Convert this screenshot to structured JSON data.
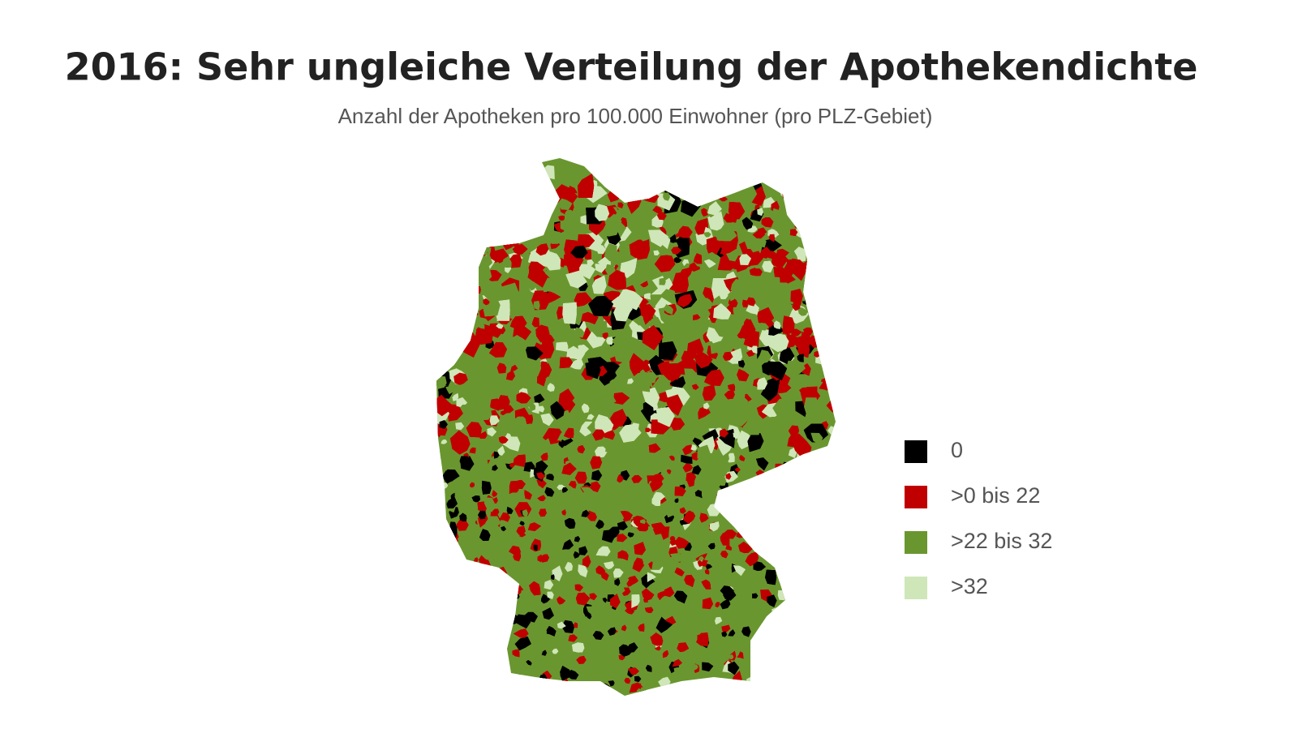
{
  "title": "2016: Sehr ungleiche Verteilung der Apothekendichte",
  "subtitle": "Anzahl der Apotheken pro 100.000 Einwohner (pro PLZ-Gebiet)",
  "legend": {
    "items": [
      {
        "label": "0",
        "color": "#000000"
      },
      {
        "label": ">0 bis 22",
        "color": "#c00000"
      },
      {
        "label": ">22 bis 32",
        "color": "#6a962f"
      },
      {
        "label": ">32",
        "color": "#cfe6b8"
      }
    ]
  }
}
